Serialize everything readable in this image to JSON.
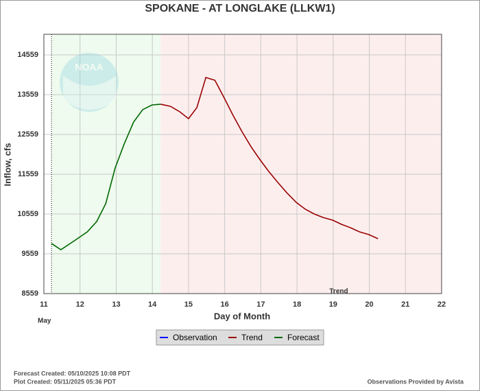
{
  "chart_data": {
    "type": "line",
    "title": "SPOKANE - AT LONGLAKE  (LLKW1)",
    "ylabel": "Inflow, cfs",
    "xlabel": "Day of Month",
    "month_label": "May",
    "annotation": "Trend",
    "logo_text": "NOAA",
    "footer_left": [
      "Forecast Created: 05/10/2025 10:08 PDT",
      "Plot Created: 05/11/2025 05:36 PDT"
    ],
    "footer_right": "Observations Provided by Avista",
    "xlim": [
      11,
      22
    ],
    "xticks": [
      11,
      12,
      13,
      14,
      15,
      16,
      17,
      18,
      19,
      20,
      21,
      22
    ],
    "ylim": [
      8559,
      15076
    ],
    "yticks": [
      8559,
      9559,
      10559,
      11559,
      12559,
      13559,
      14559
    ],
    "grid": true,
    "series": [
      {
        "name": "Observation",
        "color": "#0000ff",
        "x": [],
        "values": []
      },
      {
        "name": "Trend",
        "color": "#990000",
        "x": [
          14.23,
          14.5,
          14.76,
          15.0,
          15.23,
          15.48,
          15.73,
          15.99,
          16.23,
          16.48,
          16.73,
          16.98,
          17.22,
          17.47,
          17.72,
          17.98,
          18.23,
          18.48,
          18.72,
          18.99,
          19.23,
          19.48,
          19.73,
          19.99,
          20.24
        ],
        "values": [
          13318,
          13266,
          13128,
          12955,
          13231,
          13990,
          13921,
          13473,
          13042,
          12628,
          12249,
          11921,
          11628,
          11352,
          11093,
          10852,
          10680,
          10559,
          10473,
          10404,
          10300,
          10214,
          10111,
          10042,
          9938
        ]
      },
      {
        "name": "Forecast",
        "color": "#006600",
        "x": [
          11.21,
          11.47,
          11.87,
          12.2,
          12.46,
          12.71,
          12.97,
          13.22,
          13.48,
          13.73,
          13.99,
          14.23
        ],
        "values": [
          9818,
          9662,
          9904,
          10111,
          10369,
          10818,
          11714,
          12318,
          12869,
          13180,
          13300,
          13318
        ]
      }
    ]
  }
}
